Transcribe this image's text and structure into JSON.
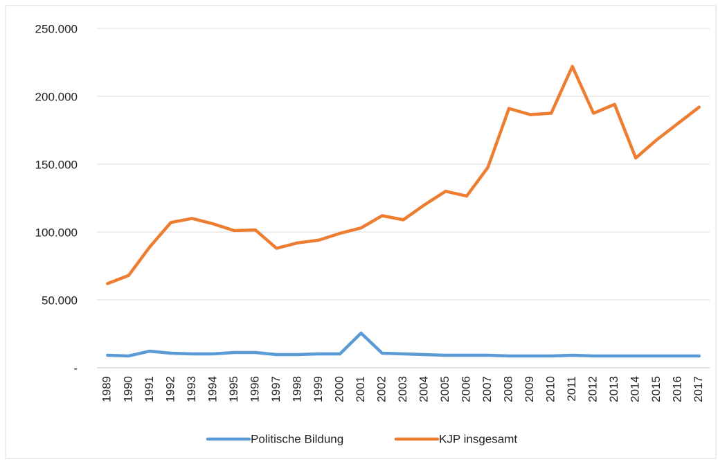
{
  "chart_data": {
    "type": "line",
    "categories": [
      "1989",
      "1990",
      "1991",
      "1992",
      "1993",
      "1994",
      "1995",
      "1996",
      "1997",
      "1998",
      "1999",
      "2000",
      "2001",
      "2002",
      "2003",
      "2004",
      "2005",
      "2006",
      "2007",
      "2008",
      "2009",
      "2010",
      "2011",
      "2012",
      "2013",
      "2014",
      "2015",
      "2016",
      "2017"
    ],
    "series": [
      {
        "name": "Politische Bildung",
        "color": "#5b9bd5",
        "values": [
          9200,
          8700,
          12200,
          10700,
          10200,
          10200,
          11200,
          11200,
          9700,
          9700,
          10200,
          10200,
          25500,
          10700,
          10200,
          9700,
          9200,
          9200,
          9200,
          8700,
          8700,
          8700,
          9200,
          8700,
          8700,
          8700,
          8700,
          8700,
          8700
        ]
      },
      {
        "name": "KJP insgesamt",
        "color": "#ed7d31",
        "values": [
          62000,
          68000,
          89000,
          107000,
          110000,
          106000,
          101000,
          101500,
          88000,
          92000,
          94000,
          99000,
          103000,
          112000,
          109000,
          120000,
          130000,
          126500,
          147500,
          191000,
          186500,
          187500,
          222000,
          187500,
          194000,
          154500,
          168000,
          180000,
          192000
        ]
      }
    ],
    "ylim": [
      0,
      250000
    ],
    "yticks": [
      {
        "value": 0,
        "label": "-"
      },
      {
        "value": 50000,
        "label": "50.000"
      },
      {
        "value": 100000,
        "label": "100.000"
      },
      {
        "value": 150000,
        "label": "150.000"
      },
      {
        "value": 200000,
        "label": "200.000"
      },
      {
        "value": 250000,
        "label": "250.000"
      }
    ],
    "grid": true,
    "legend": "bottom"
  }
}
